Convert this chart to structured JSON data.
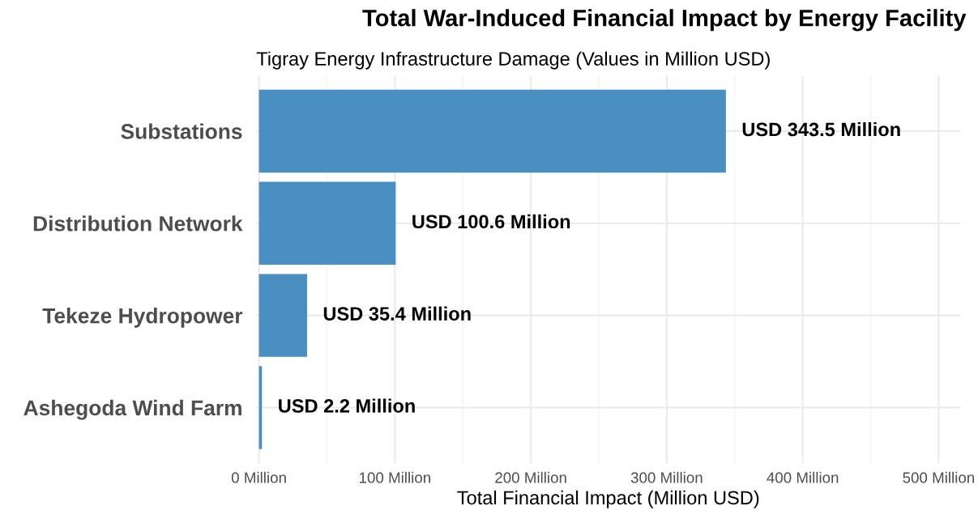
{
  "chart_data": {
    "type": "bar",
    "orientation": "horizontal",
    "title": "Total War-Induced Financial Impact by Energy Facility",
    "subtitle": "Tigray Energy Infrastructure Damage (Values in Million USD)",
    "xlabel": "Total Financial Impact (Million USD)",
    "categories": [
      "Substations",
      "Distribution Network",
      "Tekeze Hydropower",
      "Ashegoda Wind Farm"
    ],
    "values": [
      343.5,
      100.6,
      35.4,
      2.2
    ],
    "value_labels": [
      "USD 343.5 Million",
      "USD 100.6 Million",
      "USD 35.4 Million",
      "USD 2.2 Million"
    ],
    "color": "#4a8fc2",
    "xlim": [
      -2,
      516
    ],
    "xticks": [
      {
        "value": 0,
        "label": "0 Million"
      },
      {
        "value": 100,
        "label": "100 Million"
      },
      {
        "value": 200,
        "label": "200 Million"
      },
      {
        "value": 300,
        "label": "300 Million"
      },
      {
        "value": 400,
        "label": "400 Million"
      },
      {
        "value": 500,
        "label": "500 Million"
      }
    ],
    "grid": true
  }
}
